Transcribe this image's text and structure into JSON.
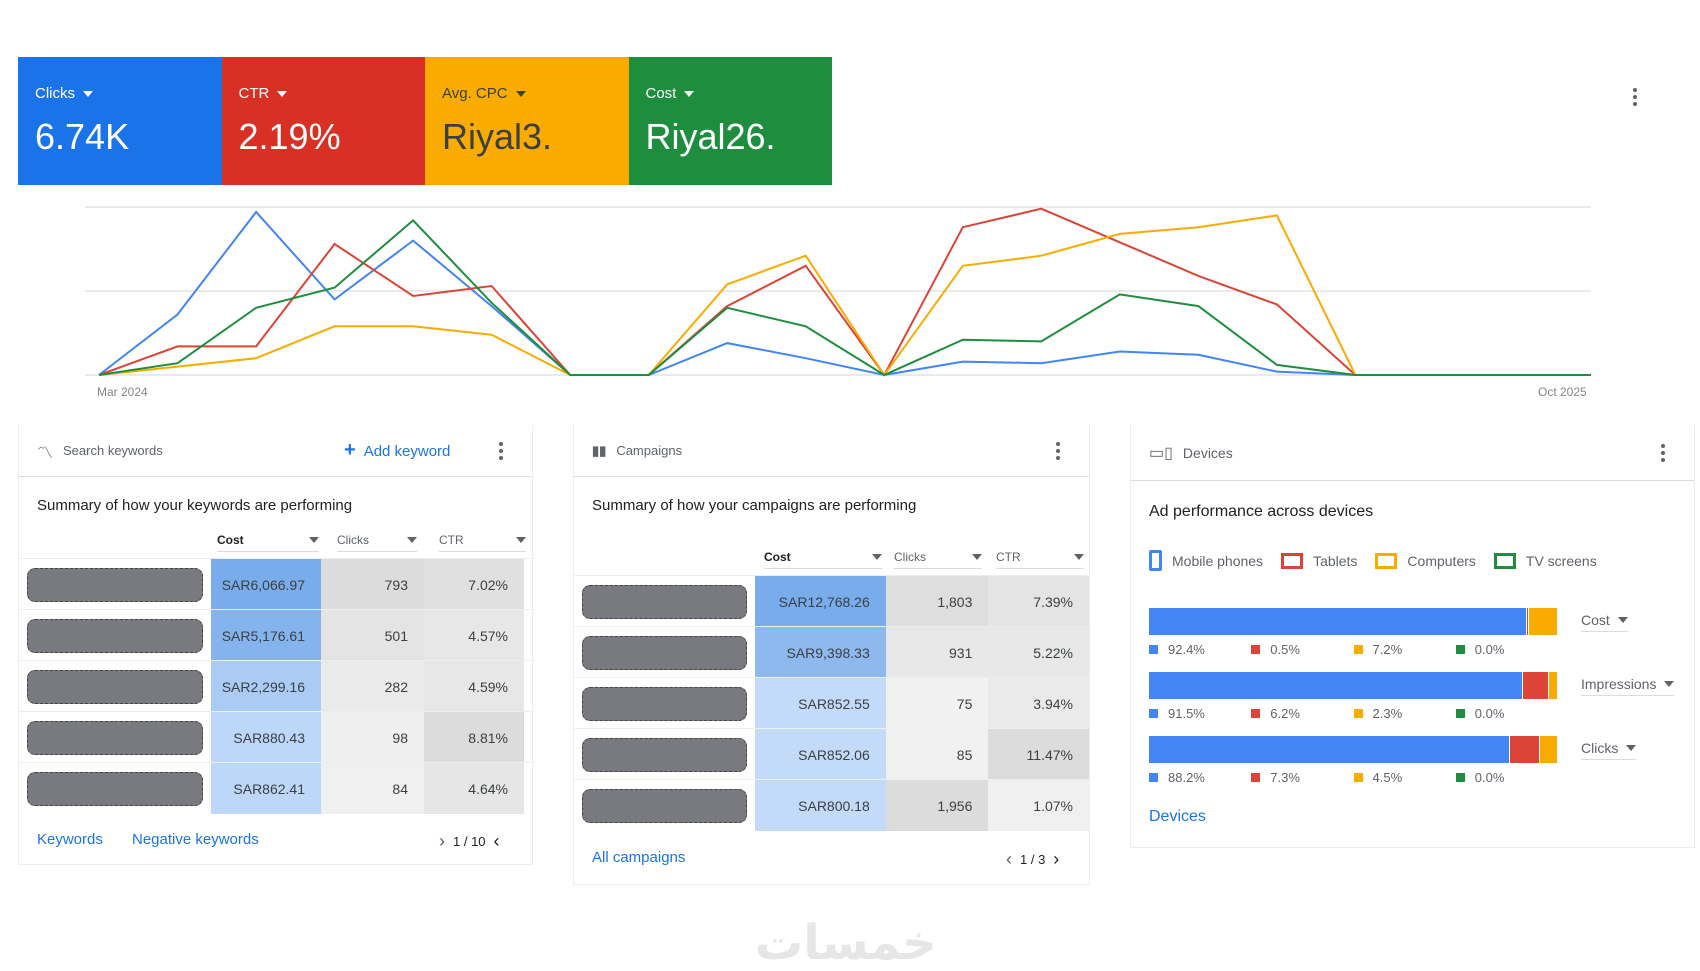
{
  "kpis": [
    {
      "label": "Clicks",
      "value": "6.74K",
      "color": "#1a73e8"
    },
    {
      "label": "CTR",
      "value": "2.19%",
      "color": "#d93025"
    },
    {
      "label": "Avg. CPC",
      "value": "Riyal3.",
      "color": "#f9ab00"
    },
    {
      "label": "Cost",
      "value": "Riyal26.",
      "color": "#1e8e3e"
    }
  ],
  "chart_data": {
    "type": "line",
    "x_start_label": "Mar 2024",
    "x_end_label": "Oct 2025",
    "points": 20,
    "ylim": [
      0,
      100
    ],
    "series": [
      {
        "name": "Clicks",
        "color": "#4285f4",
        "values": [
          0,
          36,
          97,
          45,
          80,
          41,
          0,
          0,
          19,
          10,
          0,
          8,
          7,
          14,
          12,
          2,
          0,
          0,
          0,
          0
        ]
      },
      {
        "name": "CTR",
        "color": "#db4437",
        "values": [
          0,
          17,
          17,
          78,
          47,
          53,
          0,
          0,
          41,
          65,
          0,
          88,
          99,
          79,
          59,
          42,
          0,
          0,
          0,
          0
        ]
      },
      {
        "name": "Avg. CPC",
        "color": "#f9ab00",
        "values": [
          0,
          5,
          10,
          29,
          29,
          24,
          0,
          0,
          54,
          71,
          0,
          65,
          71,
          84,
          88,
          95,
          0,
          0,
          0,
          0
        ]
      },
      {
        "name": "Cost",
        "color": "#1e8e3e",
        "values": [
          0,
          7,
          40,
          52,
          92,
          43,
          0,
          0,
          40,
          29,
          0,
          21,
          20,
          48,
          41,
          6,
          0,
          0,
          0,
          0
        ]
      }
    ]
  },
  "keywords": {
    "title": "Search keywords",
    "add": "Add keyword",
    "summary": "Summary of how your keywords are performing",
    "cols": [
      "Cost",
      "Clicks",
      "CTR"
    ],
    "rows": [
      [
        "SAR6,066.97",
        "793",
        "7.02%"
      ],
      [
        "SAR5,176.61",
        "501",
        "4.57%"
      ],
      [
        "SAR2,299.16",
        "282",
        "4.59%"
      ],
      [
        "SAR880.43",
        "98",
        "8.81%"
      ],
      [
        "SAR862.41",
        "84",
        "4.64%"
      ]
    ],
    "links": [
      "Keywords",
      "Negative keywords"
    ],
    "page": "1 / 10"
  },
  "campaigns": {
    "title": "Campaigns",
    "summary": "Summary of how your campaigns are performing",
    "cols": [
      "Cost",
      "Clicks",
      "CTR"
    ],
    "rows": [
      [
        "SAR12,768.26",
        "1,803",
        "7.39%"
      ],
      [
        "SAR9,398.33",
        "931",
        "5.22%"
      ],
      [
        "SAR852.55",
        "75",
        "3.94%"
      ],
      [
        "SAR852.06",
        "85",
        "11.47%"
      ],
      [
        "SAR800.18",
        "1,956",
        "1.07%"
      ]
    ],
    "link": "All campaigns",
    "page": "1 / 3"
  },
  "devices": {
    "title": "Devices",
    "subtitle": "Ad performance across devices",
    "legend": [
      {
        "label": "Mobile phones",
        "color": "#4285f4"
      },
      {
        "label": "Tablets",
        "color": "#db4437"
      },
      {
        "label": "Computers",
        "color": "#f9ab00"
      },
      {
        "label": "TV screens",
        "color": "#1e8e3e"
      }
    ],
    "metrics": [
      {
        "name": "Cost",
        "values": [
          92.4,
          0.5,
          7.2,
          0.0
        ],
        "labels": [
          "92.4%",
          "0.5%",
          "7.2%",
          "0.0%"
        ]
      },
      {
        "name": "Impressions",
        "values": [
          91.5,
          6.2,
          2.3,
          0.0
        ],
        "labels": [
          "91.5%",
          "6.2%",
          "2.3%",
          "0.0%"
        ]
      },
      {
        "name": "Clicks",
        "values": [
          88.2,
          7.3,
          4.5,
          0.0
        ],
        "labels": [
          "88.2%",
          "7.3%",
          "4.5%",
          "0.0%"
        ]
      }
    ],
    "link": "Devices"
  },
  "watermark": "خمسات"
}
